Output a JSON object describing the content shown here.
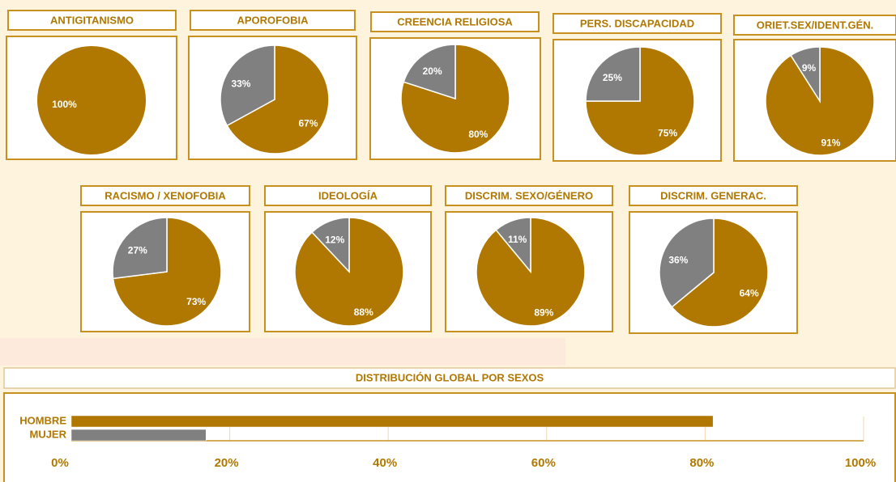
{
  "chart_data": [
    {
      "type": "pie",
      "title": "ANTIGITANISMO",
      "values": [
        100
      ],
      "value_labels": [
        "100%"
      ],
      "colors": [
        "#b07800"
      ]
    },
    {
      "type": "pie",
      "title": "APOROFOBIA",
      "values": [
        67,
        33
      ],
      "value_labels": [
        "67%",
        "33%"
      ],
      "colors": [
        "#b07800",
        "#808080"
      ]
    },
    {
      "type": "pie",
      "title": "CREENCIA RELIGIOSA",
      "values": [
        80,
        20
      ],
      "value_labels": [
        "80%",
        "20%"
      ],
      "colors": [
        "#b07800",
        "#808080"
      ]
    },
    {
      "type": "pie",
      "title": "PERS. DISCAPACIDAD",
      "values": [
        75,
        25
      ],
      "value_labels": [
        "75%",
        "25%"
      ],
      "colors": [
        "#b07800",
        "#808080"
      ]
    },
    {
      "type": "pie",
      "title": "ORIET.SEX/IDENT.GÉN.",
      "values": [
        91,
        9
      ],
      "value_labels": [
        "91%",
        "9%"
      ],
      "colors": [
        "#b07800",
        "#808080"
      ]
    },
    {
      "type": "pie",
      "title": "RACISMO / XENOFOBIA",
      "values": [
        73,
        27
      ],
      "value_labels": [
        "73%",
        "27%"
      ],
      "colors": [
        "#b07800",
        "#808080"
      ]
    },
    {
      "type": "pie",
      "title": "IDEOLOGÍA",
      "values": [
        88,
        12
      ],
      "value_labels": [
        "88%",
        "12%"
      ],
      "colors": [
        "#b07800",
        "#808080"
      ]
    },
    {
      "type": "pie",
      "title": "DISCRIM. SEXO/GÉNERO",
      "values": [
        89,
        11
      ],
      "value_labels": [
        "89%",
        "11%"
      ],
      "colors": [
        "#b07800",
        "#808080"
      ]
    },
    {
      "type": "pie",
      "title": "DISCRIM. GENERAC.",
      "values": [
        64,
        36
      ],
      "value_labels": [
        "64%",
        "36%"
      ],
      "colors": [
        "#b07800",
        "#808080"
      ]
    },
    {
      "type": "barh",
      "title": "DISTRIBUCIÓN GLOBAL POR SEXOS",
      "categories": [
        "HOMBRE",
        "MUJER"
      ],
      "values": [
        81,
        17
      ],
      "colors": [
        "#b07800",
        "#808080"
      ],
      "xlim": [
        0,
        100
      ],
      "xticks": [
        {
          "value": 0,
          "label": "0%"
        },
        {
          "value": 20,
          "label": "20%"
        },
        {
          "value": 40,
          "label": "40%"
        },
        {
          "value": 60,
          "label": "60%"
        },
        {
          "value": 80,
          "label": "80%"
        },
        {
          "value": 100,
          "label": "100%"
        }
      ]
    }
  ]
}
